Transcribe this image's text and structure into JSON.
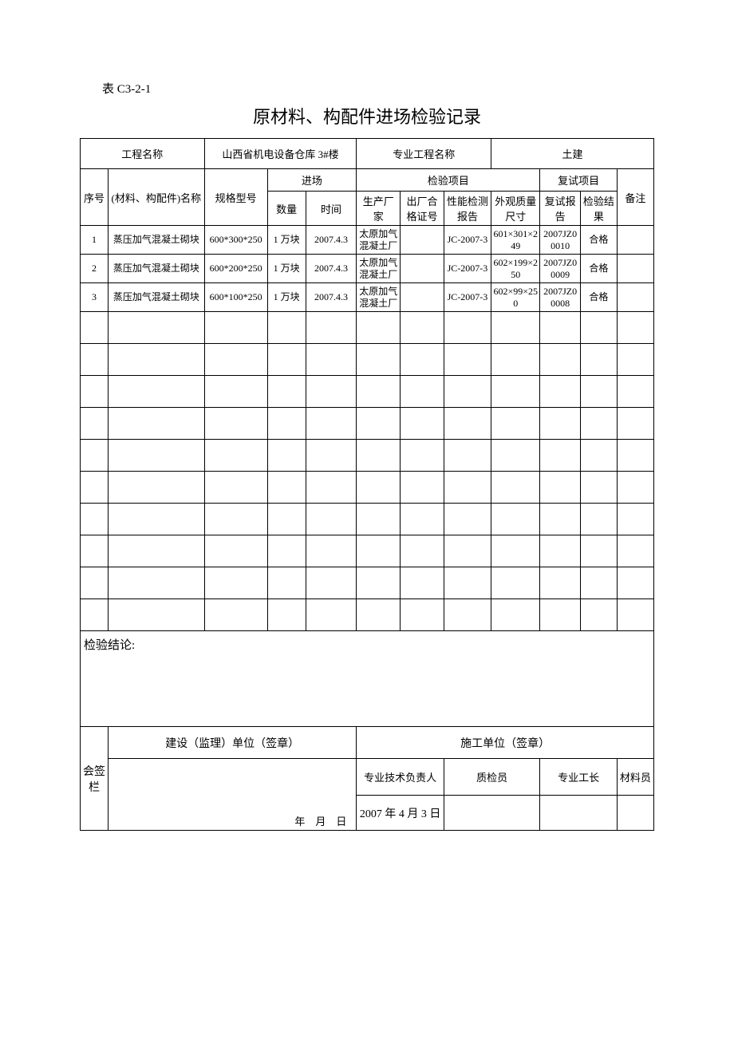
{
  "form_code": "表 C3-2-1",
  "title": "原材料、构配件进场检验记录",
  "header": {
    "project_name_label": "工程名称",
    "project_name": "山西省机电设备仓库 3#楼",
    "spec_project_label": "专业工程名称",
    "spec_project": "土建",
    "seq_label": "序号",
    "material_label": "(材料、构配件)名称",
    "spec_no_label": "规格型号",
    "arrival_label": "进场",
    "qty_label": "数量",
    "time_label": "时间",
    "inspect_items_label": "检验项目",
    "manufacturer_label": "生产厂家",
    "cert_label": "出厂合格证号",
    "perf_label": "性能检测报告",
    "appearance_label": "外观质量尺寸",
    "retest_label": "复试项目",
    "retest_report_label": "复试报告",
    "retest_result_label": "检验结果",
    "remark_label": "备注"
  },
  "rows": [
    {
      "seq": "1",
      "name": "蒸压加气混凝土砌块",
      "spec": "600*300*250",
      "qty": "1 万块",
      "time": "2007.4.3",
      "maker": "太原加气混凝土厂",
      "cert": "",
      "perf": "JC-2007-3",
      "appear": "601×301×249",
      "retest_rpt": "2007JZ00010",
      "retest_res": "合格",
      "remark": ""
    },
    {
      "seq": "2",
      "name": "蒸压加气混凝土砌块",
      "spec": "600*200*250",
      "qty": "1 万块",
      "time": "2007.4.3",
      "maker": "太原加气混凝土厂",
      "cert": "",
      "perf": "JC-2007-3",
      "appear": "602×199×250",
      "retest_rpt": "2007JZ00009",
      "retest_res": "合格",
      "remark": ""
    },
    {
      "seq": "3",
      "name": "蒸压加气混凝土砌块",
      "spec": "600*100*250",
      "qty": "1 万块",
      "time": "2007.4.3",
      "maker": "太原加气混凝土厂",
      "cert": "",
      "perf": "JC-2007-3",
      "appear": "602×99×250",
      "retest_rpt": "2007JZ00008",
      "retest_res": "合格",
      "remark": ""
    }
  ],
  "empty_row_count": 10,
  "conclusion_label": "检验结论:",
  "sign": {
    "col_label": "会签栏",
    "supervisor_label": "建设（监理）单位（签章）",
    "construction_label": "施工单位（签章）",
    "tech_leader": "专业技术负责人",
    "qc": "质检员",
    "foreman": "专业工长",
    "material_clerk": "材料员",
    "date_placeholder": "年　月　日",
    "construction_date": "2007 年 4 月 3 日"
  },
  "col_widths": [
    "32",
    "110",
    "72",
    "44",
    "58",
    "50",
    "50",
    "54",
    "56",
    "46",
    "42",
    "42"
  ]
}
